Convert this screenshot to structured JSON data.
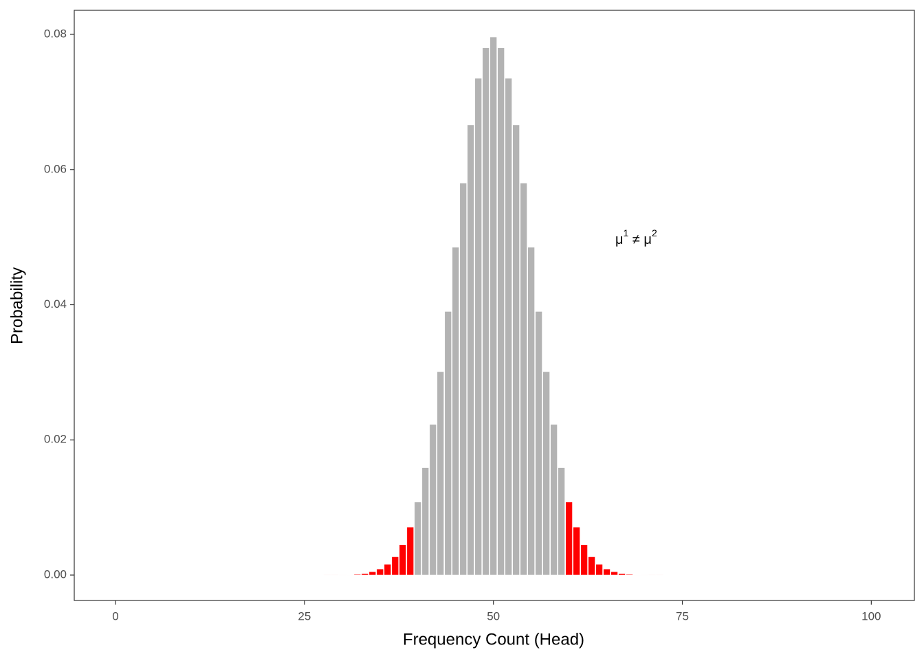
{
  "chart_data": {
    "type": "bar",
    "x": [
      25,
      26,
      27,
      28,
      29,
      30,
      31,
      32,
      33,
      34,
      35,
      36,
      37,
      38,
      39,
      40,
      41,
      42,
      43,
      44,
      45,
      46,
      47,
      48,
      49,
      50,
      51,
      52,
      53,
      54,
      55,
      56,
      57,
      58,
      59,
      60,
      61,
      62,
      63,
      64,
      65,
      66,
      67,
      68,
      69,
      70,
      71,
      72,
      73,
      74,
      75
    ],
    "values": [
      0,
      0,
      0,
      1e-05,
      1e-05,
      2e-05,
      5e-05,
      0.00011,
      0.00023,
      0.0005,
      0.0009,
      0.0016,
      0.0027,
      0.0045,
      0.0071,
      0.0108,
      0.0159,
      0.0223,
      0.0301,
      0.039,
      0.0485,
      0.058,
      0.0666,
      0.0735,
      0.078,
      0.0796,
      0.078,
      0.0735,
      0.0666,
      0.058,
      0.0485,
      0.039,
      0.0301,
      0.0223,
      0.0159,
      0.0108,
      0.0071,
      0.0045,
      0.0027,
      0.0016,
      0.0009,
      0.0005,
      0.00023,
      0.00011,
      5e-05,
      2e-05,
      1e-05,
      1e-05,
      0,
      0,
      0
    ],
    "colors": [
      "#ff0000",
      "#ff0000",
      "#ff0000",
      "#ff0000",
      "#ff0000",
      "#ff0000",
      "#ff0000",
      "#ff0000",
      "#ff0000",
      "#ff0000",
      "#ff0000",
      "#ff0000",
      "#ff0000",
      "#ff0000",
      "#ff0000",
      "#b3b3b3",
      "#b3b3b3",
      "#b3b3b3",
      "#b3b3b3",
      "#b3b3b3",
      "#b3b3b3",
      "#b3b3b3",
      "#b3b3b3",
      "#b3b3b3",
      "#b3b3b3",
      "#b3b3b3",
      "#b3b3b3",
      "#b3b3b3",
      "#b3b3b3",
      "#b3b3b3",
      "#b3b3b3",
      "#b3b3b3",
      "#b3b3b3",
      "#b3b3b3",
      "#b3b3b3",
      "#ff0000",
      "#ff0000",
      "#ff0000",
      "#ff0000",
      "#ff0000",
      "#ff0000",
      "#ff0000",
      "#ff0000",
      "#ff0000",
      "#ff0000",
      "#ff0000",
      "#ff0000",
      "#ff0000",
      "#ff0000",
      "#ff0000",
      "#ff0000"
    ],
    "xlabel": "Frequency Count (Head)",
    "ylabel": "Probability",
    "annotation": [
      "μ",
      "1",
      " ≠ μ",
      "2"
    ],
    "xlim": [
      -5.46,
      105.7
    ],
    "xticks": [
      0,
      25,
      50,
      75,
      100
    ],
    "ylim": [
      -0.00376,
      0.08356
    ],
    "yticks": [
      {
        "value": 0,
        "label": "0.00"
      },
      {
        "value": 0.02,
        "label": "0.02"
      },
      {
        "value": 0.04,
        "label": "0.04"
      },
      {
        "value": 0.06,
        "label": "0.06"
      },
      {
        "value": 0.08,
        "label": "0.08"
      }
    ],
    "grid": false
  }
}
